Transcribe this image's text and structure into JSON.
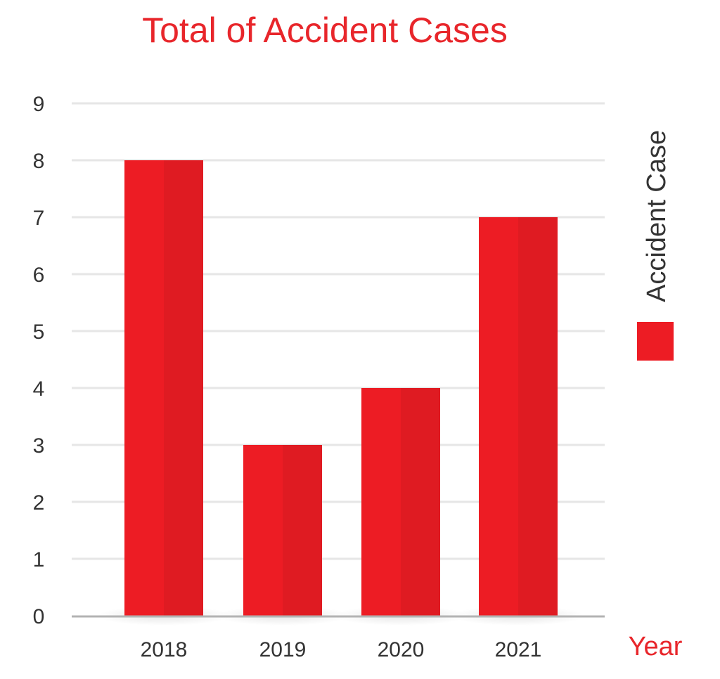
{
  "chart_data": {
    "type": "bar",
    "title": "Total of Accident Cases",
    "xlabel": "Year",
    "ylabel": "",
    "categories": [
      "2018",
      "2019",
      "2020",
      "2021"
    ],
    "series": [
      {
        "name": "Accident Case",
        "values": [
          8,
          3,
          4,
          7
        ]
      }
    ],
    "ylim": [
      0,
      9
    ],
    "yticks": [
      "0",
      "1",
      "2",
      "3",
      "4",
      "5",
      "6",
      "7",
      "8",
      "9"
    ],
    "grid": true,
    "legend_position": "right",
    "colors": {
      "bar": "#ed1c24",
      "bar_shade": "#df1b22",
      "title": "#e8262b",
      "grid": "#e6e6e6",
      "axis": "#b3b3b3"
    }
  }
}
